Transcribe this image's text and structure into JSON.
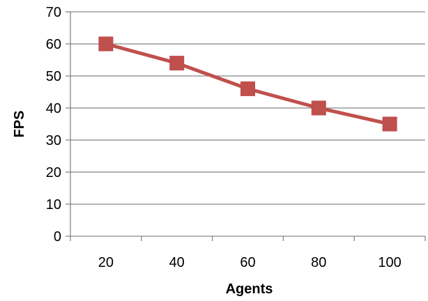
{
  "chart_data": {
    "type": "line",
    "title": "",
    "xlabel": "Agents",
    "ylabel": "FPS",
    "xlim": [
      10,
      110
    ],
    "ylim": [
      0,
      70
    ],
    "x_ticks": [
      20,
      40,
      60,
      80,
      100
    ],
    "y_ticks": [
      0,
      10,
      20,
      30,
      40,
      50,
      60,
      70
    ],
    "grid": true,
    "legend": false,
    "series": [
      {
        "x": [
          20,
          40,
          60,
          80,
          100
        ],
        "values": [
          60,
          54,
          46,
          40,
          35
        ],
        "color": "#c0504d",
        "marker": "square"
      }
    ]
  }
}
